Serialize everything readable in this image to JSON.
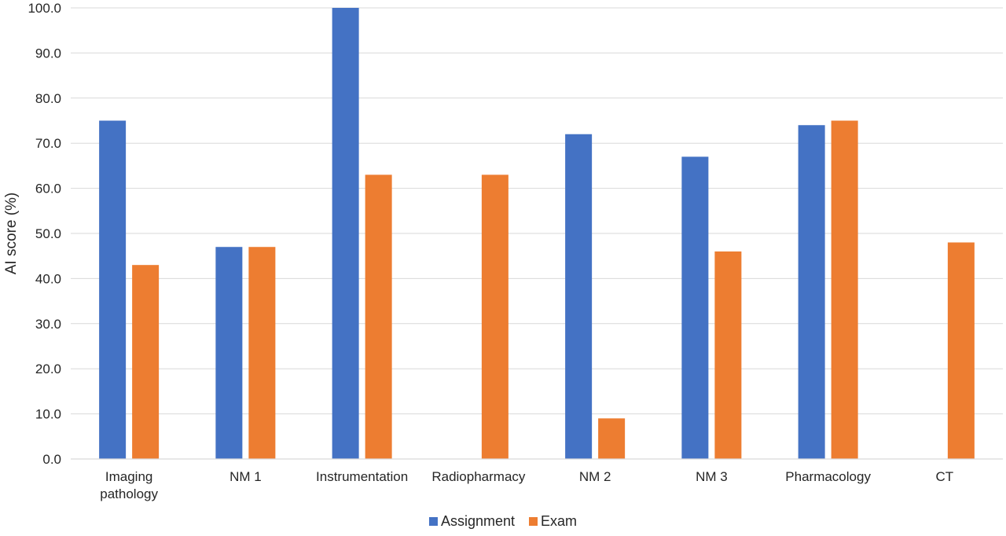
{
  "chart_data": {
    "type": "bar",
    "title": "",
    "xlabel": "",
    "ylabel": "AI score (%)",
    "ylim": [
      0,
      100
    ],
    "ytick_step": 10,
    "ytick_format": "0.0",
    "grid": true,
    "legend_position": "bottom",
    "categories": [
      [
        "Imaging",
        "pathology"
      ],
      [
        "NM 1"
      ],
      [
        "Instrumentation"
      ],
      [
        "Radiopharmacy"
      ],
      [
        "NM 2"
      ],
      [
        "NM 3"
      ],
      [
        "Pharmacology"
      ],
      [
        "CT"
      ]
    ],
    "series": [
      {
        "name": "Assignment",
        "color": "#4472C4",
        "values": [
          75,
          47,
          100,
          null,
          72,
          67,
          74,
          null
        ]
      },
      {
        "name": "Exam",
        "color": "#ED7D31",
        "values": [
          43,
          47,
          63,
          63,
          9,
          46,
          75,
          48
        ]
      }
    ]
  }
}
